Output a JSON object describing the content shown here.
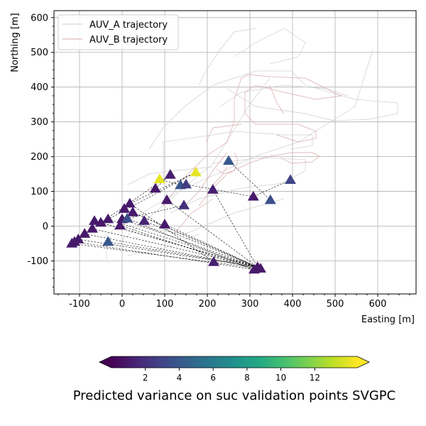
{
  "chart_data": {
    "type": "scatter",
    "xlabel": "Easting [m]",
    "ylabel": "Northing [m]",
    "xlim": [
      -160,
      690
    ],
    "ylim": [
      -195,
      620
    ],
    "xticks": [
      -100,
      0,
      100,
      200,
      300,
      400,
      500,
      600
    ],
    "xtick_labels": [
      "-100",
      "0",
      "100",
      "200",
      "300",
      "400",
      "500",
      "600"
    ],
    "yticks": [
      -100,
      0,
      100,
      200,
      300,
      400,
      500,
      600
    ],
    "ytick_labels": [
      "-100",
      "0",
      "100",
      "200",
      "300",
      "400",
      "500",
      "600"
    ],
    "grid": true,
    "legend": {
      "placement": "upper-left",
      "entries": [
        "AUV_A trajectory",
        "AUV_B trajectory"
      ]
    },
    "colorbar": {
      "label": "Predicted variance on suc validation points SVGPC",
      "min": 0,
      "max": 14.5,
      "ticks": [
        2,
        4,
        6,
        8,
        10,
        12
      ],
      "tick_labels": [
        "2",
        "4",
        "6",
        "8",
        "10",
        "12"
      ],
      "extend": "both",
      "colormap": "viridis"
    },
    "series": [
      {
        "name": "validation points",
        "marker": "triangle",
        "points": [
          {
            "x": 250,
            "y": 188,
            "v": 4.0
          },
          {
            "x": 395,
            "y": 133,
            "v": 3.0
          },
          {
            "x": 88,
            "y": 135,
            "v": 14.0
          },
          {
            "x": 173,
            "y": 155,
            "v": 14.0
          },
          {
            "x": 113,
            "y": 148,
            "v": 1.2
          },
          {
            "x": 137,
            "y": 118,
            "v": 4.0
          },
          {
            "x": 150,
            "y": 120,
            "v": 2.5
          },
          {
            "x": 78,
            "y": 108,
            "v": 1.0
          },
          {
            "x": 213,
            "y": 105,
            "v": 1.2
          },
          {
            "x": 308,
            "y": 85,
            "v": 1.0
          },
          {
            "x": 348,
            "y": 75,
            "v": 3.5
          },
          {
            "x": 105,
            "y": 75,
            "v": 1.0
          },
          {
            "x": 145,
            "y": 60,
            "v": 2.0
          },
          {
            "x": 18,
            "y": 65,
            "v": 1.0
          },
          {
            "x": 5,
            "y": 50,
            "v": 1.0
          },
          {
            "x": 25,
            "y": 40,
            "v": 1.0
          },
          {
            "x": 0,
            "y": 20,
            "v": 1.0
          },
          {
            "x": 12,
            "y": 22,
            "v": 3.5
          },
          {
            "x": 52,
            "y": 15,
            "v": 1.5
          },
          {
            "x": 100,
            "y": 5,
            "v": 1.0
          },
          {
            "x": -33,
            "y": 20,
            "v": 1.0
          },
          {
            "x": -50,
            "y": 10,
            "v": 1.0
          },
          {
            "x": -65,
            "y": 15,
            "v": 1.0
          },
          {
            "x": -5,
            "y": 2,
            "v": 1.0
          },
          {
            "x": -70,
            "y": -7,
            "v": 1.0
          },
          {
            "x": -88,
            "y": -22,
            "v": 1.0
          },
          {
            "x": -103,
            "y": -38,
            "v": 1.0
          },
          {
            "x": -112,
            "y": -45,
            "v": 1.0
          },
          {
            "x": -118,
            "y": -50,
            "v": 1.0
          },
          {
            "x": -33,
            "y": -45,
            "v": 4.0
          },
          {
            "x": 215,
            "y": -103,
            "v": 1.2
          },
          {
            "x": 318,
            "y": -118,
            "v": 1.0
          },
          {
            "x": 325,
            "y": -122,
            "v": 1.0
          },
          {
            "x": 310,
            "y": -125,
            "v": 1.0
          }
        ]
      }
    ],
    "connections": [
      [
        0,
        10
      ],
      [
        1,
        9
      ],
      [
        2,
        5
      ],
      [
        3,
        13
      ],
      [
        4,
        7
      ],
      [
        8,
        31
      ],
      [
        12,
        17
      ],
      [
        13,
        30
      ],
      [
        14,
        31
      ],
      [
        15,
        32
      ],
      [
        16,
        31
      ],
      [
        17,
        33
      ],
      [
        18,
        31
      ],
      [
        19,
        32
      ],
      [
        20,
        31
      ],
      [
        21,
        32
      ],
      [
        22,
        31
      ],
      [
        23,
        33
      ],
      [
        24,
        31
      ],
      [
        25,
        32
      ],
      [
        26,
        31
      ],
      [
        27,
        33
      ],
      [
        28,
        32
      ],
      [
        29,
        31
      ],
      [
        6,
        9
      ],
      [
        11,
        31
      ],
      [
        3,
        20
      ],
      [
        4,
        24
      ]
    ]
  }
}
